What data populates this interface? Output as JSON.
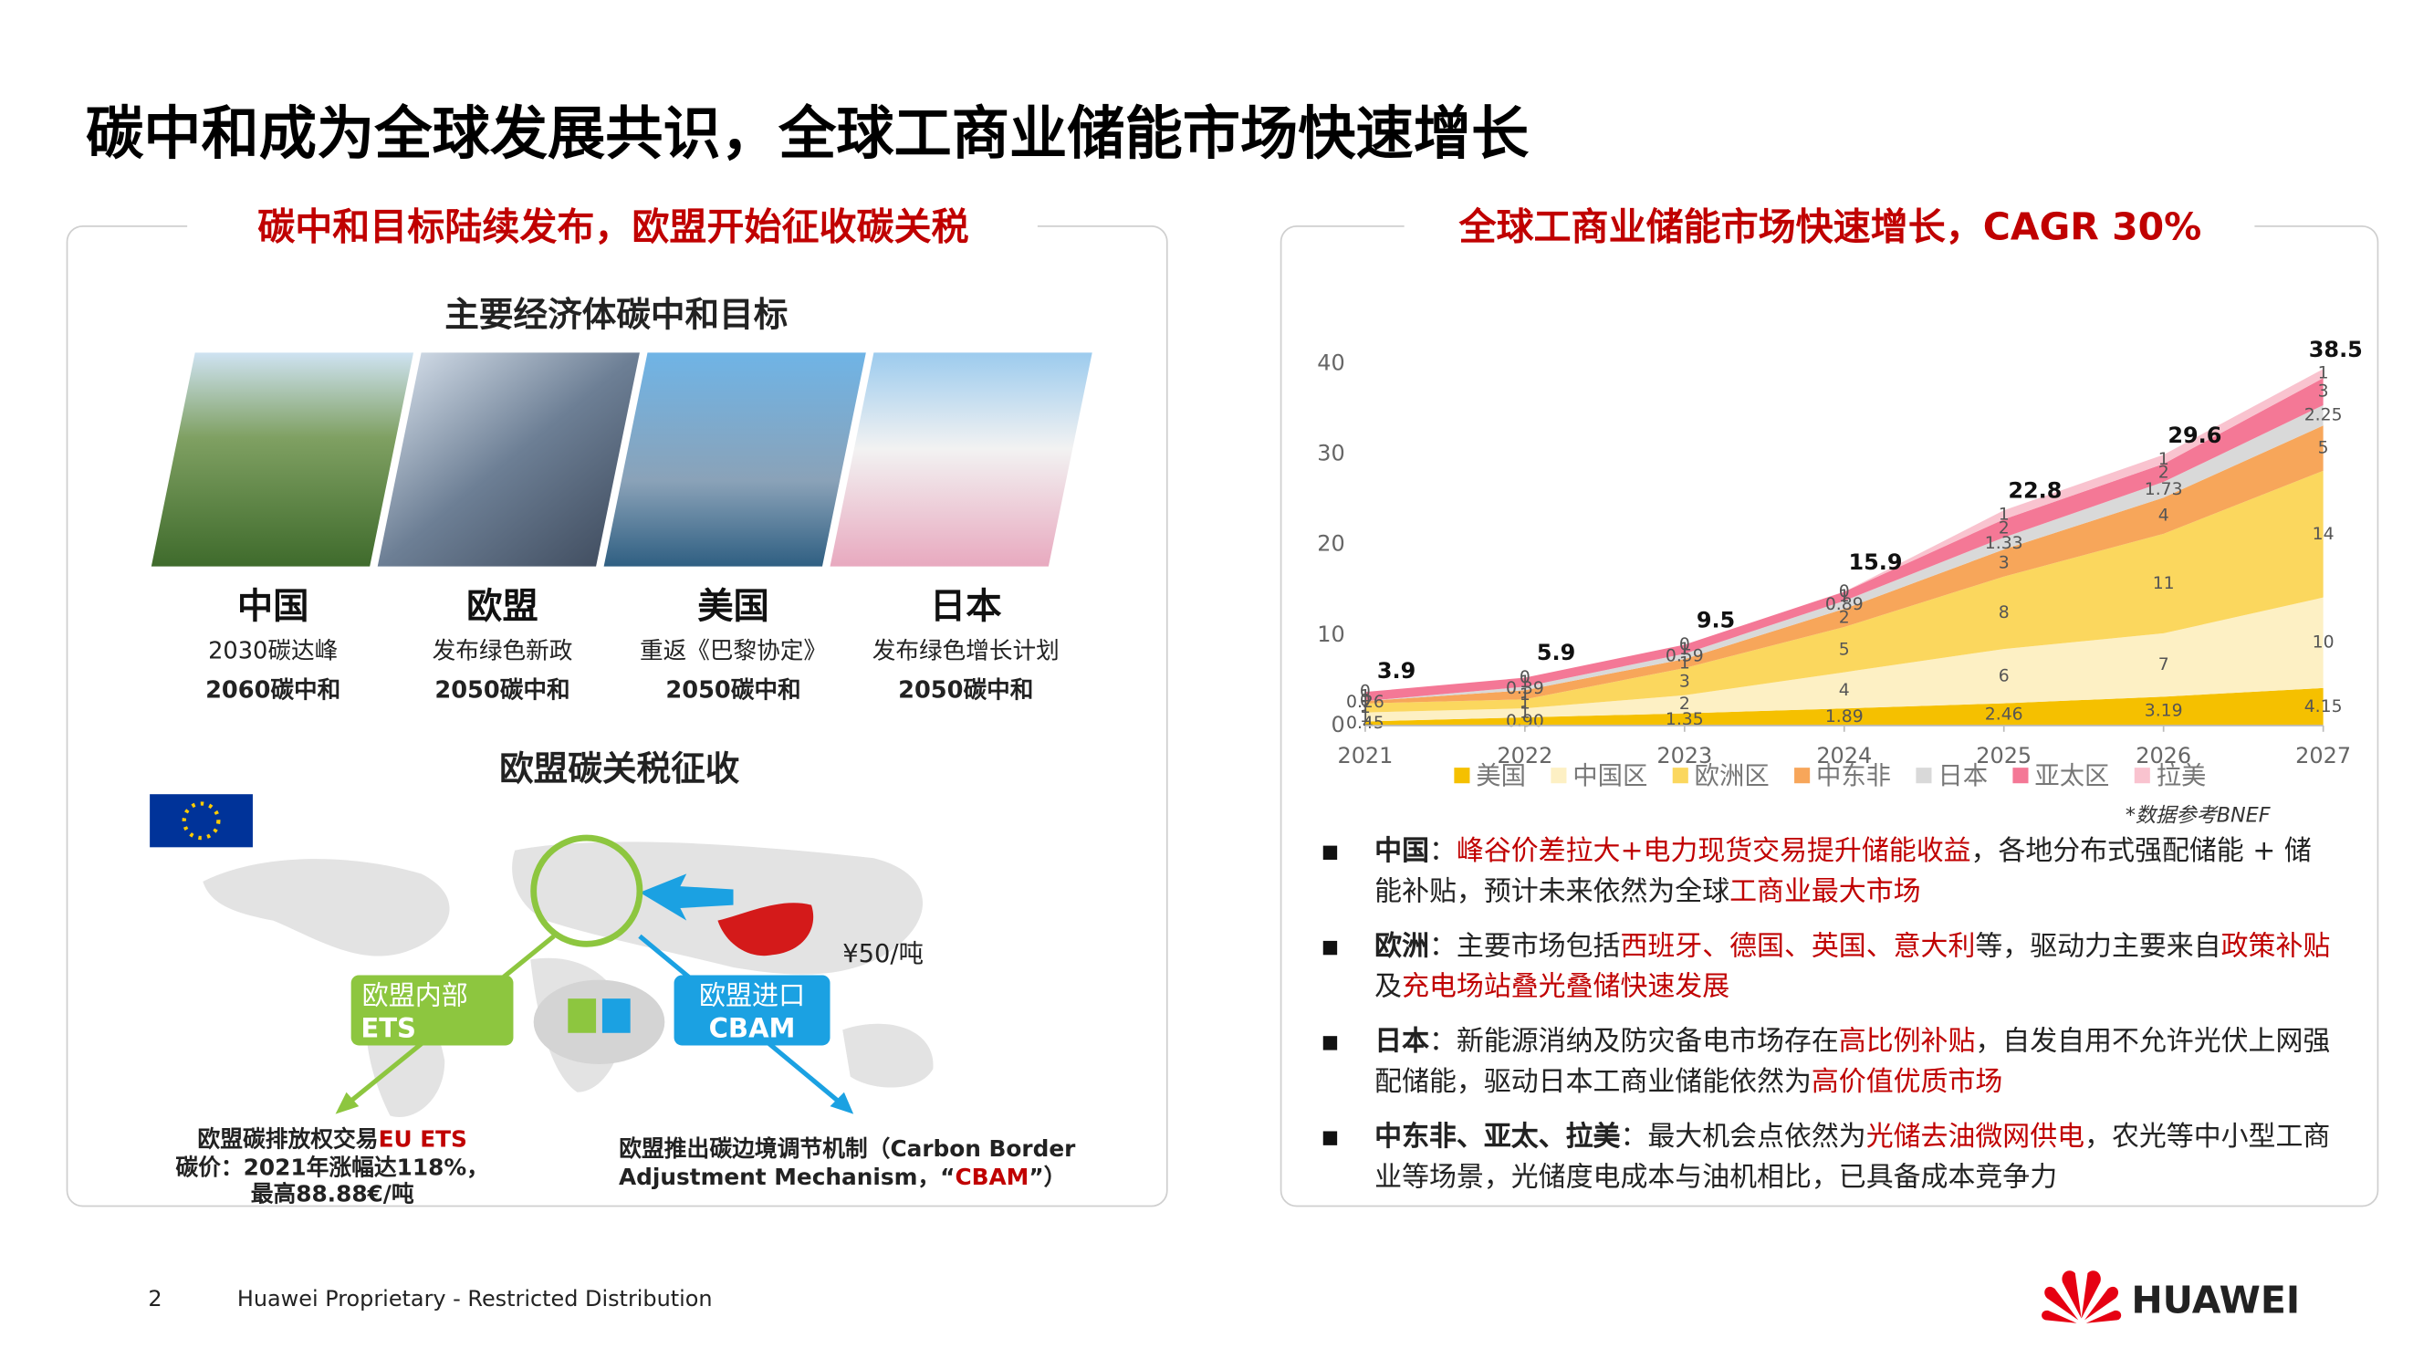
{
  "title": "碳中和成为全球发展共识，全球工商业储能市场快速增长",
  "left": {
    "heading": "碳中和目标陆续发布，欧盟开始征收碳关税",
    "section1": "主要经济体碳中和目标",
    "economies": [
      {
        "name": "中国",
        "lines": [
          "2030碳达峰",
          "2060碳中和"
        ]
      },
      {
        "name": "欧盟",
        "lines": [
          "发布绿色新政",
          "2050碳中和"
        ]
      },
      {
        "name": "美国",
        "lines": [
          "重返《巴黎协定》",
          "2050碳中和"
        ]
      },
      {
        "name": "日本",
        "lines": [
          "发布绿色增长计划",
          "2050碳中和"
        ]
      }
    ],
    "section2": "欧盟碳关税征收",
    "map": {
      "ets": [
        "欧盟内部",
        "ETS"
      ],
      "cbam": [
        "欧盟进口",
        "CBAM"
      ],
      "price": "¥50/吨"
    },
    "ets_note": {
      "line1": "欧盟碳排放权交易",
      "line1_red": "EU ETS",
      "line2": "碳价：2021年涨幅达118%，",
      "line3": "最高88.88€/吨"
    },
    "cbam_note": {
      "line1": "欧盟推出碳边境调节机制（Carbon Border",
      "line2": "Adjustment Mechanism，“",
      "line2_red": "CBAM",
      "line2_end": "”）"
    }
  },
  "right": {
    "heading": "全球工商业储能市场快速增长，CAGR 30%",
    "chart": {
      "type": "area",
      "stacked": true,
      "x": [
        2021,
        2022,
        2023,
        2024,
        2025,
        2026,
        2027
      ],
      "xlim": [
        2021,
        2027
      ],
      "xticks": [
        2021,
        2022,
        2023,
        2024,
        2025,
        2026,
        2027
      ],
      "ylim": [
        0,
        40
      ],
      "yticks": [
        0,
        10,
        20,
        30,
        40
      ],
      "grid": false,
      "legend": "bottom",
      "totals": [
        3.9,
        5.9,
        9.5,
        15.9,
        22.8,
        29.6,
        38.5
      ],
      "series": [
        {
          "name": "美国",
          "color": "#f5c000",
          "values": [
            0.45,
            0.9,
            1.35,
            1.89,
            2.46,
            3.19,
            4.15
          ],
          "value_labels": [
            "0.45",
            "0.90",
            "1.35",
            "1.89",
            "2.46",
            "3.19",
            "4.15"
          ]
        },
        {
          "name": "中国区",
          "color": "#fdf0c4",
          "values": [
            1,
            1,
            2,
            4,
            6,
            7,
            10
          ]
        },
        {
          "name": "欧洲区",
          "color": "#fbd75e",
          "values": [
            1,
            1,
            3,
            5,
            8,
            11,
            14
          ]
        },
        {
          "name": "中东非",
          "color": "#f7a65a",
          "values": [
            0.26,
            1,
            1,
            2,
            3,
            4,
            5
          ]
        },
        {
          "name": "日本",
          "color": "#d9d9d9",
          "values": [
            0,
            0.39,
            0.59,
            0.89,
            1.33,
            1.73,
            2.25
          ]
        },
        {
          "name": "亚太区",
          "color": "#f47896",
          "values": [
            1,
            1,
            1,
            1,
            2,
            2,
            3
          ]
        },
        {
          "name": "拉美",
          "color": "#f9c3cf",
          "values": [
            0,
            0,
            0,
            0,
            1,
            1,
            1
          ]
        }
      ]
    },
    "source": "*数据参考BNEF",
    "bullets": [
      {
        "label": "中国",
        "runs": [
          {
            "text": "：",
            "red": false
          },
          {
            "text": "峰谷价差拉大+电力现货交易提升储能收益",
            "red": true
          },
          {
            "text": "，各地分布式强配储能 + 储能补贴，预计未来依然为全球",
            "red": false
          },
          {
            "text": "工商业最大市场",
            "red": true
          }
        ]
      },
      {
        "label": "欧洲",
        "runs": [
          {
            "text": "：主要市场包括",
            "red": false
          },
          {
            "text": "西班牙、德国、英国、意大利",
            "red": true
          },
          {
            "text": "等，驱动力主要来自",
            "red": false
          },
          {
            "text": "政策补贴",
            "red": true
          },
          {
            "text": "及",
            "red": false
          },
          {
            "text": "充电场站叠光叠储快速发展",
            "red": true
          }
        ]
      },
      {
        "label": "日本",
        "runs": [
          {
            "text": "：新能源消纳及防灾备电市场存在",
            "red": false
          },
          {
            "text": "高比例补贴",
            "red": true
          },
          {
            "text": "，自发自用不允许光伏上网强配储能，驱动日本工商业储能依然为",
            "red": false
          },
          {
            "text": "高价值优质市场",
            "red": true
          }
        ]
      },
      {
        "label": "中东非、亚太、拉美",
        "runs": [
          {
            "text": "：最大机会点依然为",
            "red": false
          },
          {
            "text": "光储去油微网供电",
            "red": true
          },
          {
            "text": "，农光等中小型工商业等场景，光储度电成本与油机相比，已具备成本竞争力",
            "red": false
          }
        ]
      }
    ]
  },
  "footer": {
    "page": "2",
    "text": "Huawei Proprietary - Restricted Distribution",
    "brand": "HUAWEI"
  }
}
